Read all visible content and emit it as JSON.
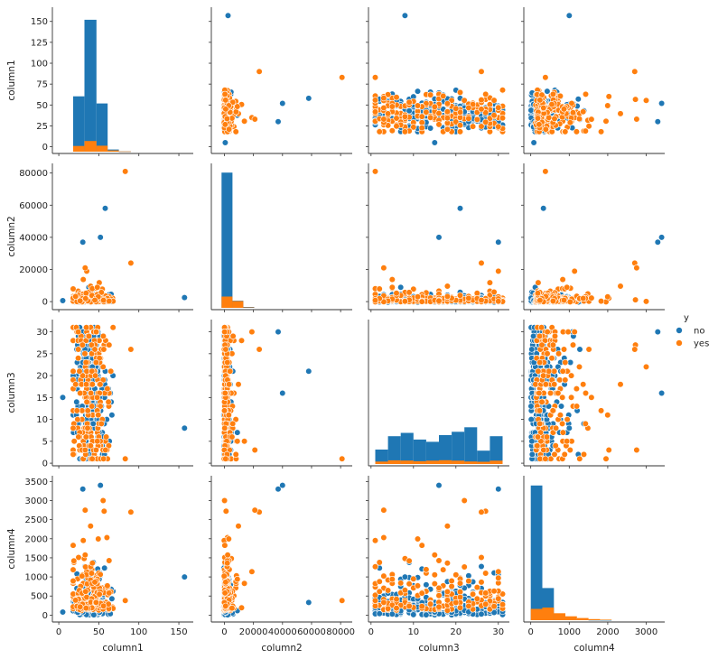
{
  "chart_data": {
    "type": "pairplot",
    "variables": [
      "column1",
      "column2",
      "column3",
      "column4"
    ],
    "hue": {
      "title": "y",
      "levels": [
        "no",
        "yes"
      ],
      "colors": {
        "no": "#1f77b4",
        "yes": "#ff7f0e"
      }
    },
    "legend_position": "right",
    "axes": {
      "column1": {
        "range": [
          -8,
          168
        ],
        "ticks": [
          "0",
          "50",
          "100",
          "150"
        ],
        "tick_values": [
          0,
          50,
          100,
          150
        ],
        "row_range": [
          -8,
          167
        ],
        "row_ticks": [
          "0",
          "25",
          "50",
          "75",
          "100",
          "125",
          "150"
        ],
        "row_tick_values": [
          0,
          25,
          50,
          75,
          100,
          125,
          150
        ]
      },
      "column2": {
        "range": [
          -9000,
          88000
        ],
        "ticks": [
          "0",
          "20000",
          "40000",
          "60000",
          "80000"
        ],
        "tick_values": [
          0,
          20000,
          40000,
          60000,
          80000
        ],
        "row_range": [
          -5000,
          86000
        ],
        "row_ticks": [
          "0",
          "20000",
          "40000",
          "60000",
          "80000"
        ],
        "row_tick_values": [
          0,
          20000,
          40000,
          60000,
          80000
        ]
      },
      "column3": {
        "range": [
          -0.6,
          32.6
        ],
        "ticks": [
          "0",
          "10",
          "20",
          "30"
        ],
        "tick_values": [
          0,
          10,
          20,
          30
        ],
        "row_range": [
          -0.6,
          32.8
        ],
        "row_ticks": [
          "0",
          "5",
          "10",
          "15",
          "20",
          "25",
          "30"
        ],
        "row_tick_values": [
          0,
          5,
          10,
          15,
          20,
          25,
          30
        ]
      },
      "column4": {
        "range": [
          -180,
          3480
        ],
        "ticks": [
          "0",
          "1000",
          "2000",
          "3000"
        ],
        "tick_values": [
          0,
          1000,
          2000,
          3000
        ],
        "row_range": [
          -180,
          3650
        ],
        "row_ticks": [
          "0",
          "500",
          "1000",
          "1500",
          "2000",
          "2500",
          "3000",
          "3500"
        ],
        "row_tick_values": [
          0,
          500,
          1000,
          1500,
          2000,
          2500,
          3000,
          3500
        ]
      }
    },
    "diagonal_histograms": {
      "column1": {
        "bin_edges": [
          18,
          32,
          47,
          61,
          75,
          90
        ],
        "no": [
          3900,
          9300,
          3400,
          150,
          20
        ],
        "yes": [
          400,
          750,
          420,
          90,
          20
        ],
        "ymax": 9800
      },
      "column2": {
        "bin_edges": [
          -2000,
          5500,
          13000,
          20500
        ],
        "no": [
          36000,
          1900,
          250
        ],
        "yes": [
          3000,
          1800,
          120
        ],
        "ymax": 37000
      },
      "column3": {
        "bin_edges": [
          1,
          4,
          7,
          10,
          13,
          16,
          19,
          22,
          25,
          28,
          31
        ],
        "no": [
          1300,
          2500,
          2800,
          2200,
          2000,
          2600,
          2900,
          3300,
          1200,
          2500
        ],
        "yes": [
          220,
          330,
          310,
          250,
          300,
          340,
          300,
          230,
          200,
          300
        ],
        "ymax": 12500
      },
      "column4": {
        "bin_edges": [
          0,
          300,
          600,
          900,
          1200,
          1500,
          1800,
          2100
        ],
        "no": [
          15500,
          3700,
          700,
          150,
          60,
          20,
          10
        ],
        "yes": [
          1300,
          1450,
          800,
          450,
          250,
          120,
          60
        ],
        "ymax": 16000
      }
    },
    "scatter_notable_points": {
      "no": [
        {
          "column1": 5,
          "column2": 600,
          "column3": 15,
          "column4": 80
        },
        {
          "column1": 58,
          "column2": 58000,
          "column3": 21,
          "column4": 330
        },
        {
          "column1": 157,
          "column2": 2500,
          "column3": 8,
          "column4": 1000
        },
        {
          "column1": 30,
          "column2": 37000,
          "column3": 30,
          "column4": 3300
        },
        {
          "column1": 52,
          "column2": 40000,
          "column3": 16,
          "column4": 3400
        }
      ],
      "yes": [
        {
          "column1": 83,
          "column2": 81000,
          "column3": 1,
          "column4": 380
        },
        {
          "column1": 90,
          "column2": 24000,
          "column3": 26,
          "column4": 2700
        },
        {
          "column1": 33,
          "column2": 21000,
          "column3": 3,
          "column4": 2750
        }
      ]
    }
  }
}
